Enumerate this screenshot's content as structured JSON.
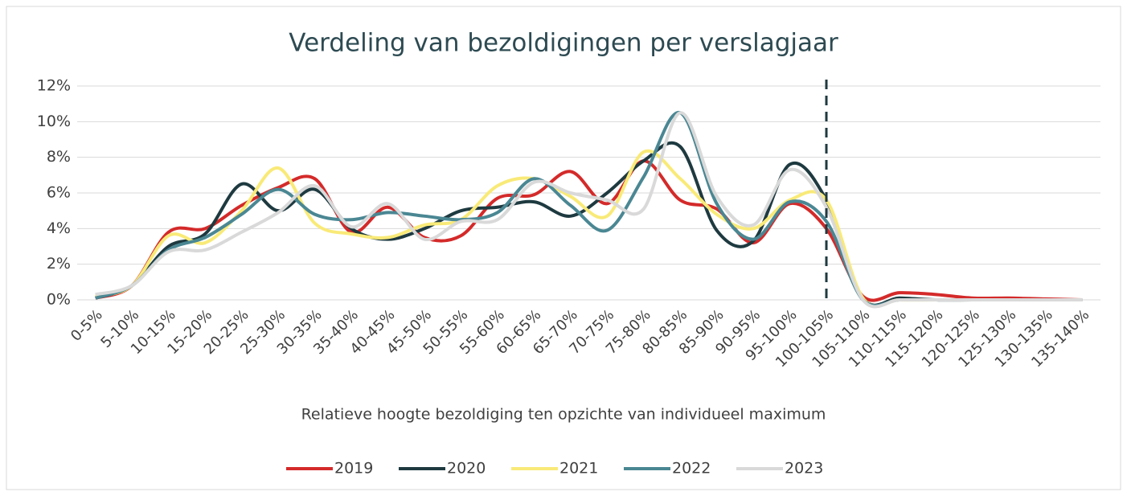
{
  "chart_data": {
    "type": "line",
    "title": "Verdeling van bezoldigingen per verslagjaar",
    "x_label": "Relatieve hoogte bezoldiging ten opzichte van individueel maximum",
    "categories": [
      "0-5%",
      "5-10%",
      "10-15%",
      "15-20%",
      "20-25%",
      "25-30%",
      "30-35%",
      "35-40%",
      "40-45%",
      "45-50%",
      "50-55%",
      "55-60%",
      "60-65%",
      "65-70%",
      "70-75%",
      "75-80%",
      "80-85%",
      "85-90%",
      "90-95%",
      "95-100%",
      "100-105%",
      "105-110%",
      "110-115%",
      "115-120%",
      "120-125%",
      "125-130%",
      "130-135%",
      "135-140%"
    ],
    "series": [
      {
        "name": "2019",
        "color": "#d42a2a",
        "values": [
          0.1,
          0.8,
          3.8,
          4.0,
          5.3,
          6.3,
          6.8,
          3.8,
          5.2,
          3.5,
          3.6,
          5.7,
          5.9,
          7.2,
          5.4,
          7.8,
          5.6,
          5.1,
          3.2,
          5.4,
          4.0,
          0.2,
          0.4,
          0.3,
          0.1,
          0.1,
          0.05,
          0
        ]
      },
      {
        "name": "2020",
        "color": "#1e3a40",
        "values": [
          0.1,
          0.8,
          3.0,
          3.7,
          6.5,
          5.0,
          6.2,
          4.0,
          3.4,
          4.0,
          5.0,
          5.2,
          5.5,
          4.7,
          6.0,
          7.8,
          8.6,
          3.9,
          3.3,
          7.6,
          5.6,
          0.1,
          0.1,
          0,
          0,
          0,
          0,
          0
        ]
      },
      {
        "name": "2021",
        "color": "#f9ea78",
        "values": [
          0.2,
          0.8,
          3.6,
          3.2,
          5.0,
          7.4,
          4.3,
          3.7,
          3.5,
          4.2,
          4.5,
          6.4,
          6.8,
          5.8,
          4.7,
          8.3,
          6.8,
          4.8,
          4.0,
          5.6,
          5.6,
          0.1,
          0,
          0,
          0,
          0,
          0,
          0
        ]
      },
      {
        "name": "2022",
        "color": "#4a8793",
        "values": [
          0.1,
          0.8,
          2.8,
          3.5,
          4.8,
          6.2,
          4.8,
          4.5,
          4.9,
          4.7,
          4.5,
          4.9,
          6.8,
          5.3,
          3.9,
          6.9,
          10.5,
          5.4,
          3.4,
          5.5,
          4.4,
          0,
          0,
          0,
          0,
          0,
          0,
          0
        ]
      },
      {
        "name": "2023",
        "color": "#d9d9d9",
        "values": [
          0.3,
          0.8,
          2.7,
          2.8,
          3.8,
          4.9,
          6.4,
          4.1,
          5.4,
          3.4,
          4.4,
          4.5,
          6.6,
          6.0,
          5.6,
          5.1,
          10.5,
          5.8,
          4.2,
          7.3,
          5.2,
          0,
          0,
          0,
          0,
          0,
          0,
          0
        ]
      }
    ],
    "ylim": [
      0,
      12
    ],
    "yticks": [
      {
        "value": 0,
        "label": "0%"
      },
      {
        "value": 2,
        "label": "2%"
      },
      {
        "value": 4,
        "label": "4%"
      },
      {
        "value": 6,
        "label": "6%"
      },
      {
        "value": 8,
        "label": "8%"
      },
      {
        "value": 10,
        "label": "10%"
      },
      {
        "value": 12,
        "label": "12%"
      }
    ],
    "grid": true,
    "smooth": true,
    "legend": "bottom",
    "reference_line": {
      "at": "100-105%",
      "style": "dashed",
      "color": "#1e3a40"
    }
  }
}
